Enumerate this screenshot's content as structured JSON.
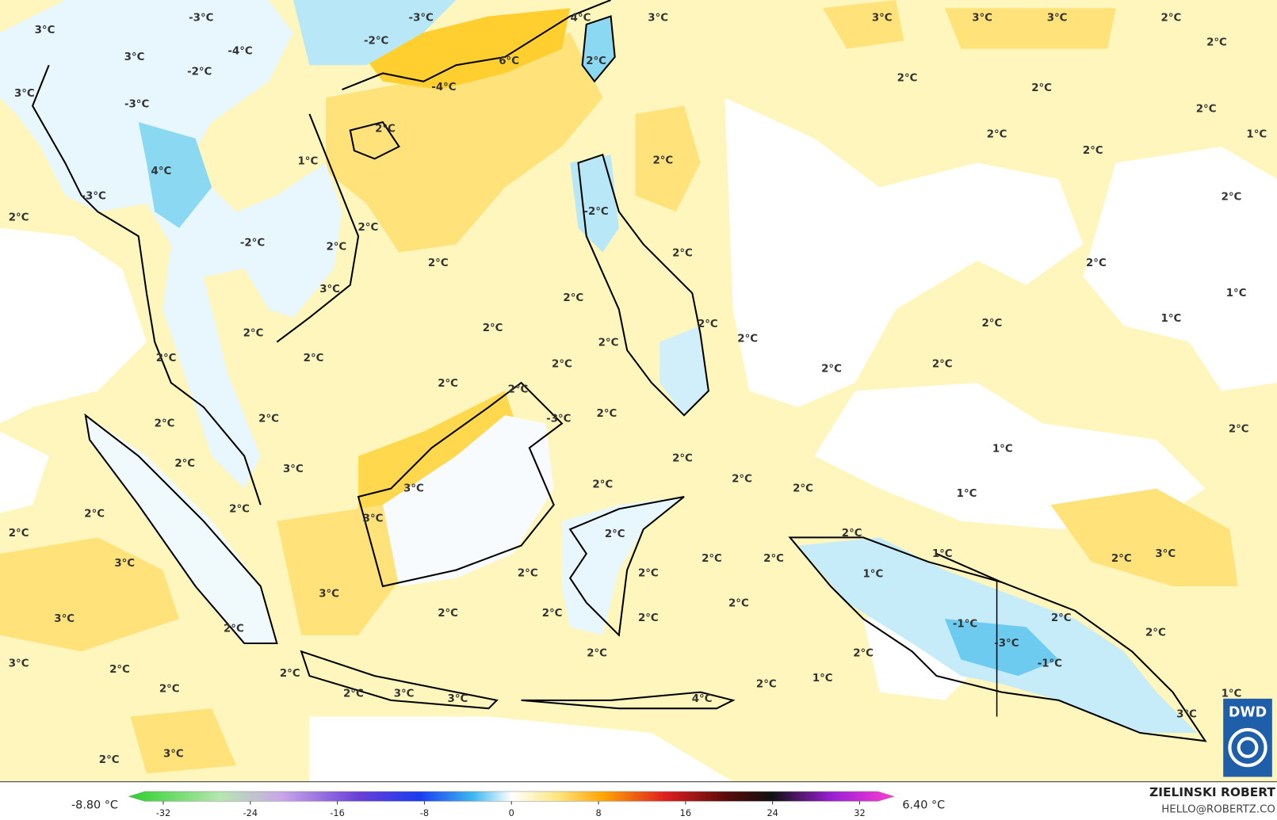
{
  "map": {
    "labels": [
      "-3°C",
      "3°C",
      "3°C",
      "3°C",
      "-2°C",
      "-3°C",
      "-4°C",
      "-2°C",
      "-3°C",
      "-4°C",
      "6°C",
      "4°C",
      "3°C",
      "3°C",
      "3°C",
      "3°C",
      "2°C",
      "2°C",
      "2°C",
      "2°C",
      "2°C",
      "2°C",
      "2°C",
      "2°C",
      "2°C",
      "1°C",
      "2°C",
      "1°C",
      "4°C",
      "2°C",
      "-3°C",
      "2°C",
      "-2°C",
      "2°C",
      "-2°C",
      "2°C",
      "2°C",
      "2°C",
      "2°C",
      "1°C",
      "3°C",
      "2°C",
      "2°C",
      "2°C",
      "2°C",
      "2°C",
      "2°C",
      "1°C",
      "2°C",
      "2°C",
      "2°C",
      "2°C",
      "2°C",
      "2°C",
      "2°C",
      "2°C",
      "-3°C",
      "2°C",
      "2°C",
      "2°C",
      "2°C",
      "1°C",
      "2°C",
      "2°C",
      "3°C",
      "2°C",
      "2°C",
      "2°C",
      "3°C",
      "1°C",
      "2°C",
      "2°C",
      "3°C",
      "2°C",
      "2°C",
      "2°C",
      "1°C",
      "2°C",
      "3°C",
      "3°C",
      "2°C",
      "2°C",
      "1°C",
      "2°C",
      "2°C",
      "3°C",
      "2°C",
      "2°C",
      "2°C",
      "3°C",
      "2°C",
      "-1°C",
      "2°C",
      "-3°C",
      "2°C",
      "2°C",
      "-1°C",
      "2°C",
      "2°C",
      "3°C",
      "2°C",
      "2°C",
      "1°C",
      "2°C",
      "2°C",
      "2°C",
      "3°C",
      "3°C",
      "4°C",
      "1°C",
      "3°C",
      "3°C",
      "2°C"
    ]
  },
  "colorbar": {
    "min_label": "-8.80 °C",
    "max_label": "6.40 °C",
    "ticks": [
      -32,
      -24,
      -16,
      -8,
      0,
      8,
      16,
      24,
      32
    ]
  },
  "credit": {
    "name": "ZIELINSKI ROBERT",
    "email": "HELLO@ROBERTZ.CO"
  },
  "logo": "DWD"
}
